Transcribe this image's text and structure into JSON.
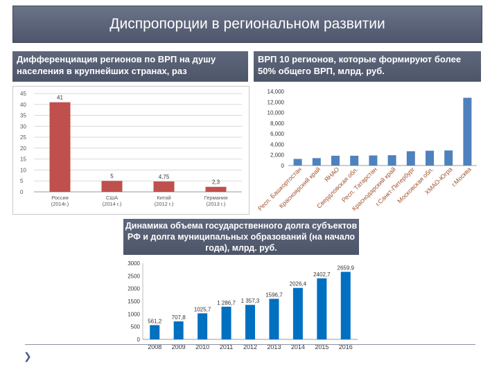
{
  "header": {
    "title": "Диспропорции в региональном развитии"
  },
  "captions": {
    "left": "Дифференциация регионов по ВРП на душу населения в крупнейших странах, раз",
    "right": "ВРП 10 регионов, которые формируют более 50% общего ВРП, млрд. руб.",
    "middle": "Динамика объема государственного долга субъектов РФ и долга муниципальных образований (на начало года), млрд. руб."
  },
  "colors": {
    "red": "#c0504d",
    "blue": "#4f81bd",
    "header": "#565e73"
  },
  "footer": {
    "icon": "chevron-down-icon"
  },
  "chart_data": [
    {
      "type": "bar",
      "categories": [
        "Россия (2014г.)",
        "США (2014 г.)",
        "Китай (2012 г.)",
        "Германия (2013 г.)"
      ],
      "category_lines": [
        [
          "Россия",
          "(2014г.)"
        ],
        [
          "США",
          "(2014 г.)"
        ],
        [
          "Китай",
          "(2012 г.)"
        ],
        [
          "Германия",
          "(2013 г.)"
        ]
      ],
      "values": [
        41,
        5,
        4.75,
        2.3
      ],
      "value_labels": [
        "41",
        "5",
        "4,75",
        "2,3"
      ],
      "ylim": [
        0,
        45
      ],
      "yticks": [
        "0",
        "5",
        "10",
        "15",
        "20",
        "25",
        "30",
        "35",
        "40",
        "45"
      ],
      "grid": true,
      "color": "#c0504d"
    },
    {
      "type": "bar",
      "categories": [
        "Респ. Башкортостан",
        "Красноярский край",
        "ЯНАО",
        "Свердловская обл.",
        "Респ. Татарстан",
        "Краснодарский край",
        "г.Санкт-Петербург",
        "Московская обл.",
        "ХМАО-Югра",
        "г.Москва"
      ],
      "values": [
        1250,
        1400,
        1850,
        1850,
        1900,
        1950,
        2700,
        2800,
        2850,
        12800
      ],
      "ylim": [
        0,
        14000
      ],
      "yticks": [
        "0",
        "2,000",
        "4,000",
        "6,000",
        "8,000",
        "10,000",
        "12,000",
        "14,000"
      ],
      "grid": false,
      "color": "#4f81bd"
    },
    {
      "type": "bar",
      "categories": [
        "2008",
        "2009",
        "2010",
        "2011",
        "2012",
        "2013",
        "2014",
        "2015",
        "2016"
      ],
      "values": [
        561.2,
        707.8,
        1025.7,
        1286.7,
        1357.3,
        1596.7,
        2026.4,
        2402.7,
        2659.9
      ],
      "value_labels": [
        "561,2",
        "707,8",
        "1025,7",
        "1 286,7",
        "1 357,3",
        "1596,7",
        "2026,4",
        "2402,7",
        "2659,9"
      ],
      "ylim": [
        0,
        3000
      ],
      "yticks": [
        "0",
        "500",
        "1000",
        "1500",
        "2000",
        "2500",
        "3000"
      ],
      "grid": false,
      "color": "#0070c0"
    }
  ]
}
